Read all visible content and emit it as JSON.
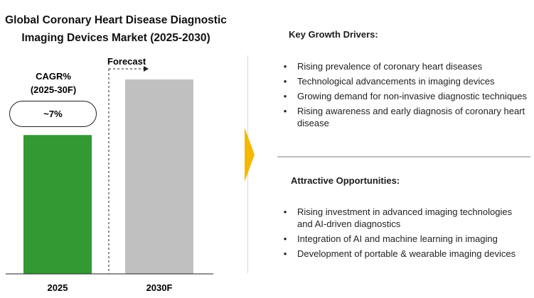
{
  "chart_data": {
    "type": "bar",
    "title_lines": [
      "Global Coronary Heart Disease Diagnostic",
      "Imaging Devices Market (2025-2030)"
    ],
    "categories": [
      "2025",
      "2030F"
    ],
    "values": [
      1.0,
      1.4
    ],
    "ylim": [
      0,
      1.4
    ],
    "bar_colors": [
      "#339933",
      "#c0c0c0"
    ],
    "grid": false,
    "forecast_label": "Forecast",
    "cagr_label_lines": [
      "CAGR%",
      "(2025-30F)"
    ],
    "cagr_value": "~7%"
  },
  "drivers": {
    "title": "Key Growth Drivers:",
    "items": [
      "Rising prevalence of coronary heart diseases",
      "Technological advancements in imaging devices",
      "Growing demand for non-invasive diagnostic techniques",
      "Rising awareness and early diagnosis of coronary heart disease"
    ]
  },
  "opportunities": {
    "title": "Attractive Opportunities:",
    "items": [
      "Rising investment in advanced imaging technologies and AI-driven diagnostics",
      "Integration of AI and machine learning in imaging",
      "Development of portable & wearable imaging devices"
    ]
  },
  "bullet_glyph": "•",
  "colors": {
    "arrow": "#f5b800",
    "axis": "#222222",
    "divider": "#bfbfbf"
  }
}
